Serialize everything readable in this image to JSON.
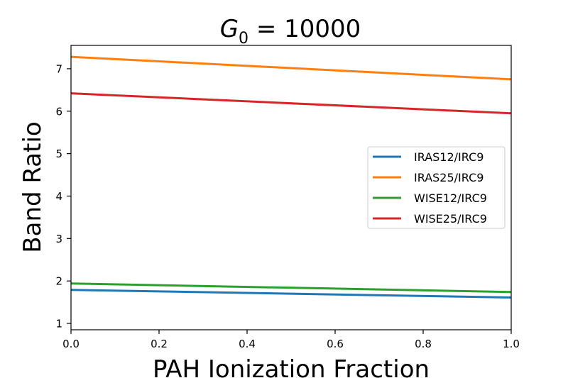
{
  "chart_data": {
    "type": "line",
    "title_var": "G",
    "title_sub": "0",
    "title_rest": " = 10000",
    "xlabel": "PAH Ionization Fraction",
    "ylabel": "Band Ratio",
    "xlim": [
      0.0,
      1.0
    ],
    "ylim": [
      0.85,
      7.55
    ],
    "xticks": [
      0.0,
      0.2,
      0.4,
      0.6,
      0.8,
      1.0
    ],
    "xtick_labels": [
      "0.0",
      "0.2",
      "0.4",
      "0.6",
      "0.8",
      "1.0"
    ],
    "yticks": [
      1,
      2,
      3,
      4,
      5,
      6,
      7
    ],
    "ytick_labels": [
      "1",
      "2",
      "3",
      "4",
      "5",
      "6",
      "7"
    ],
    "grid": false,
    "legend_position": "center-right",
    "x": [
      0.0,
      1.0
    ],
    "series": [
      {
        "name": "IRAS12/IRC9",
        "color": "#1f77b4",
        "values": [
          1.79,
          1.61
        ]
      },
      {
        "name": "IRAS25/IRC9",
        "color": "#ff7f0e",
        "values": [
          7.28,
          6.75
        ]
      },
      {
        "name": "WISE12/IRC9",
        "color": "#2ca02c",
        "values": [
          1.94,
          1.74
        ]
      },
      {
        "name": "WISE25/IRC9",
        "color": "#d62728",
        "values": [
          6.42,
          5.95
        ]
      }
    ]
  }
}
